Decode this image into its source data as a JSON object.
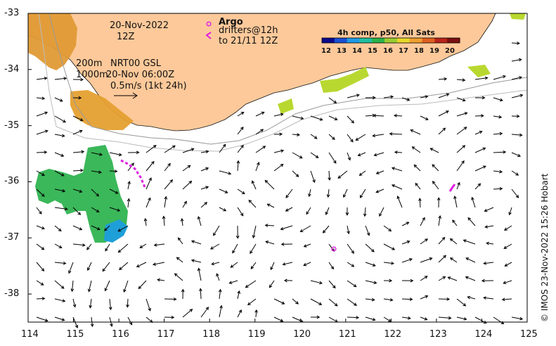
{
  "map": {
    "date": "20-Nov-2022",
    "hour": "12Z",
    "argo_label": "Argo",
    "drifters_label": "drifters@12h",
    "drifters_to": "to 21/11 12Z",
    "contour_200": "200m",
    "contour_1000": "1000m",
    "product": "NRT00 GSL",
    "product_time": "20-Nov 06:00Z",
    "scale_label": "0.5m/s (1kt 24h)",
    "colorbar_title": "4h comp, p50, All Sats",
    "colorbar_ticks": [
      "12",
      "13",
      "14",
      "15",
      "16",
      "17",
      "18",
      "19",
      "20"
    ],
    "colorbar_colors": [
      "#0a0a8c",
      "#1a4fd6",
      "#1e9be8",
      "#20c0a0",
      "#2bb34a",
      "#9acd32",
      "#e8d82a",
      "#f0a030",
      "#e06020",
      "#b8231a",
      "#7a0e0e"
    ],
    "x_ticks": [
      "114",
      "115",
      "116",
      "117",
      "118",
      "119",
      "120",
      "121",
      "122",
      "123",
      "124",
      "125"
    ],
    "y_ticks": [
      "-33",
      "-34",
      "-35",
      "-36",
      "-37",
      "-38"
    ],
    "copyright": "© IMOS 23-Nov-2022 15:26 Hobart",
    "land_color": "#fdc99a",
    "argo_color": "#e020e0"
  }
}
